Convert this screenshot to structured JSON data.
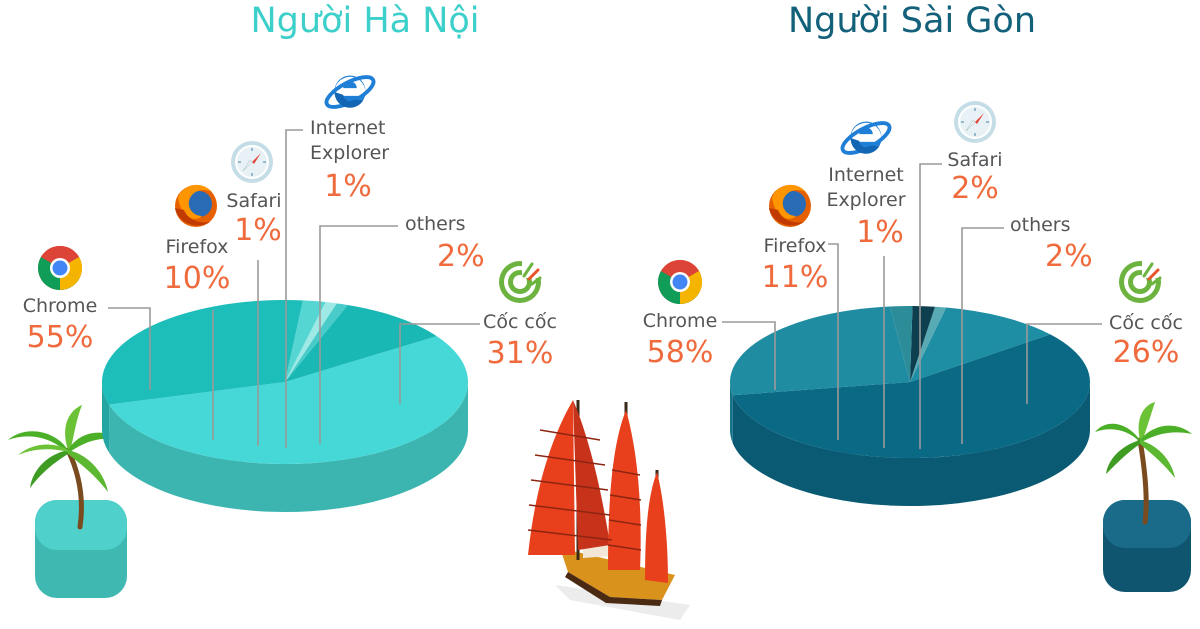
{
  "colors": {
    "hanoi_title": "#3dcfca",
    "saigon_title": "#12607a",
    "percent": "#ef6b3d",
    "label": "#555555"
  },
  "chart_data": [
    {
      "type": "pie",
      "title": "Người Hà Nội",
      "slices": [
        {
          "label": "Chrome",
          "value": 55,
          "display": "55%",
          "icon": "chrome-icon"
        },
        {
          "label": "Firefox",
          "value": 10,
          "display": "10%",
          "icon": "firefox-icon"
        },
        {
          "label": "Safari",
          "value": 1,
          "display": "1%",
          "icon": "safari-icon"
        },
        {
          "label": "Internet\nExplorer",
          "value": 1,
          "display": "1%",
          "icon": "internet-explorer-icon"
        },
        {
          "label": "others",
          "value": 2,
          "display": "2%",
          "icon": ""
        },
        {
          "label": "Cốc cốc",
          "value": 31,
          "display": "31%",
          "icon": "coccoc-icon"
        }
      ]
    },
    {
      "type": "pie",
      "title": "Người Sài Gòn",
      "slices": [
        {
          "label": "Chrome",
          "value": 58,
          "display": "58%",
          "icon": "chrome-icon"
        },
        {
          "label": "Firefox",
          "value": 11,
          "display": "11%",
          "icon": "firefox-icon"
        },
        {
          "label": "Internet\nExplorer",
          "value": 1,
          "display": "1%",
          "icon": "internet-explorer-icon"
        },
        {
          "label": "Safari",
          "value": 2,
          "display": "2%",
          "icon": "safari-icon"
        },
        {
          "label": "others",
          "value": 2,
          "display": "2%",
          "icon": ""
        },
        {
          "label": "Cốc cốc",
          "value": 26,
          "display": "26%",
          "icon": "coccoc-icon"
        }
      ]
    }
  ]
}
